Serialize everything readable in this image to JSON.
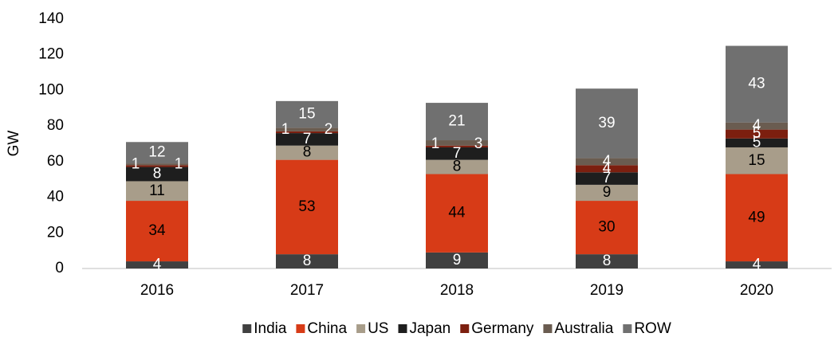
{
  "chart_data": {
    "type": "stacked_bar",
    "y_label": "GW",
    "categories": [
      "2016",
      "2017",
      "2018",
      "2019",
      "2020"
    ],
    "series": [
      {
        "name": "India",
        "color": "#404040",
        "values": [
          4,
          8,
          9,
          8,
          4
        ]
      },
      {
        "name": "China",
        "color": "#d73b17",
        "values": [
          34,
          53,
          44,
          30,
          49
        ]
      },
      {
        "name": "US",
        "color": "#a89d8a",
        "values": [
          11,
          8,
          8,
          9,
          15
        ]
      },
      {
        "name": "Japan",
        "color": "#1e1e1e",
        "values": [
          8,
          7,
          7,
          7,
          5
        ]
      },
      {
        "name": "Germany",
        "color": "#7c1f0f",
        "values": [
          1,
          1,
          1,
          4,
          5
        ]
      },
      {
        "name": "Australia",
        "color": "#6a5c50",
        "values": [
          1,
          2,
          3,
          4,
          4
        ]
      },
      {
        "name": "ROW",
        "color": "#707070",
        "values": [
          12,
          15,
          21,
          39,
          43
        ]
      }
    ],
    "ylim": [
      0,
      140
    ],
    "yticks": [
      0,
      20,
      40,
      60,
      80,
      100,
      120,
      140
    ],
    "grid": false,
    "legend": "bottom"
  }
}
